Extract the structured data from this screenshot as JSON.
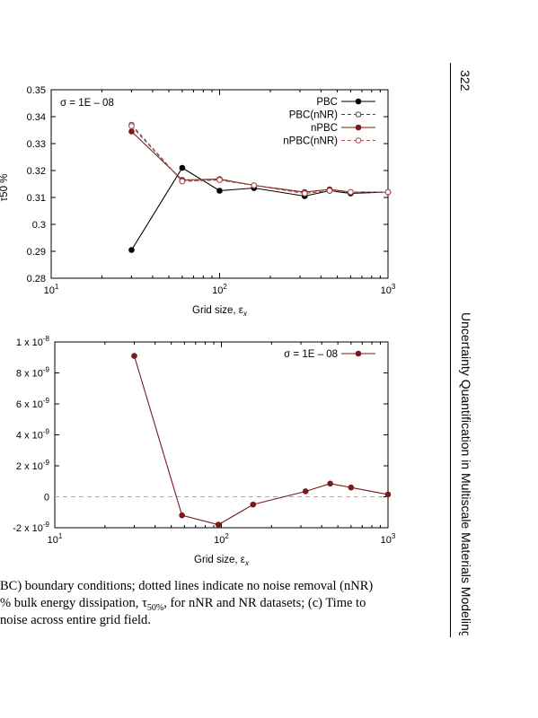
{
  "page": {
    "page_number": "322",
    "running_head": "Uncertainty Quantification in Multiscale Materials Modeling",
    "caption_lines": [
      "BC) boundary conditions; dotted lines indicate no noise removal (nNR)",
      "% bulk energy dissipation, τ",
      "noise across entire grid field."
    ],
    "caption_line2_sub": "50%",
    "caption_line2_tail": ", for nNR and NR datasets; (c) Time to"
  },
  "chart_data": [
    {
      "type": "line",
      "annotation": "σ = 1E – 08",
      "xlabel": "Grid size, εx",
      "ylabel": "τ50 %",
      "xscale": "log",
      "xlim": [
        10,
        1000
      ],
      "ylim": [
        0.28,
        0.35
      ],
      "xticks": [
        "10^1",
        "10^2",
        "10^3"
      ],
      "yticks": [
        "0.28",
        "0.29",
        "0.3",
        "0.31",
        "0.32",
        "0.33",
        "0.34",
        "0.35"
      ],
      "legend_position": "top-right",
      "series": [
        {
          "name": "PBC",
          "color": "#000000",
          "dashed": false,
          "open_marker": false,
          "x": [
            30,
            60,
            100,
            160,
            320,
            450,
            600,
            1000
          ],
          "y": [
            0.2905,
            0.321,
            0.3125,
            0.3135,
            0.3105,
            0.3125,
            0.3115,
            0.312
          ]
        },
        {
          "name": "PBC(nNR)",
          "color": "#444444",
          "dashed": true,
          "open_marker": true,
          "x": [
            30,
            60,
            100,
            160,
            320,
            450,
            600,
            1000
          ],
          "y": [
            0.337,
            0.316,
            0.3165,
            0.3145,
            0.3115,
            0.3125,
            0.312,
            0.312
          ]
        },
        {
          "name": "nPBC",
          "color": "#7a1a1a",
          "dashed": false,
          "open_marker": false,
          "x": [
            30,
            60,
            100,
            160,
            320,
            450,
            600,
            1000
          ],
          "y": [
            0.3345,
            0.3165,
            0.3168,
            0.3145,
            0.312,
            0.313,
            0.312,
            0.312
          ]
        },
        {
          "name": "nPBC(nNR)",
          "color": "#b05050",
          "dashed": true,
          "open_marker": true,
          "x": [
            30,
            60,
            100,
            160,
            320,
            450,
            600,
            1000
          ],
          "y": [
            0.3365,
            0.316,
            0.3165,
            0.3145,
            0.3115,
            0.3125,
            0.312,
            0.312
          ]
        }
      ]
    },
    {
      "type": "line",
      "xlabel": "Grid size, εx",
      "xscale": "log",
      "xlim": [
        10,
        1000
      ],
      "ylim": [
        -2e-09,
        1e-08
      ],
      "xticks": [
        "10^1",
        "10^2",
        "10^3"
      ],
      "yticks": [
        "-2 x 10^-9",
        "0",
        "2 x 10^-9",
        "4 x 10^-9",
        "6 x 10^-9",
        "8 x 10^-9",
        "1 x 10^-8"
      ],
      "legend_position": "top-right",
      "reference_line": {
        "y": 0,
        "style": "dashed",
        "color": "#aaaaaa"
      },
      "series": [
        {
          "name": "σ = 1E – 08",
          "color": "#7a1a1a",
          "dashed": false,
          "open_marker": false,
          "x": [
            30,
            58,
            96,
            155,
            320,
            450,
            600,
            1000
          ],
          "y": [
            9.1e-09,
            -1.2e-09,
            -1.8e-09,
            -5e-10,
            3.5e-10,
            8.5e-10,
            6e-10,
            1.5e-10
          ]
        }
      ]
    }
  ]
}
